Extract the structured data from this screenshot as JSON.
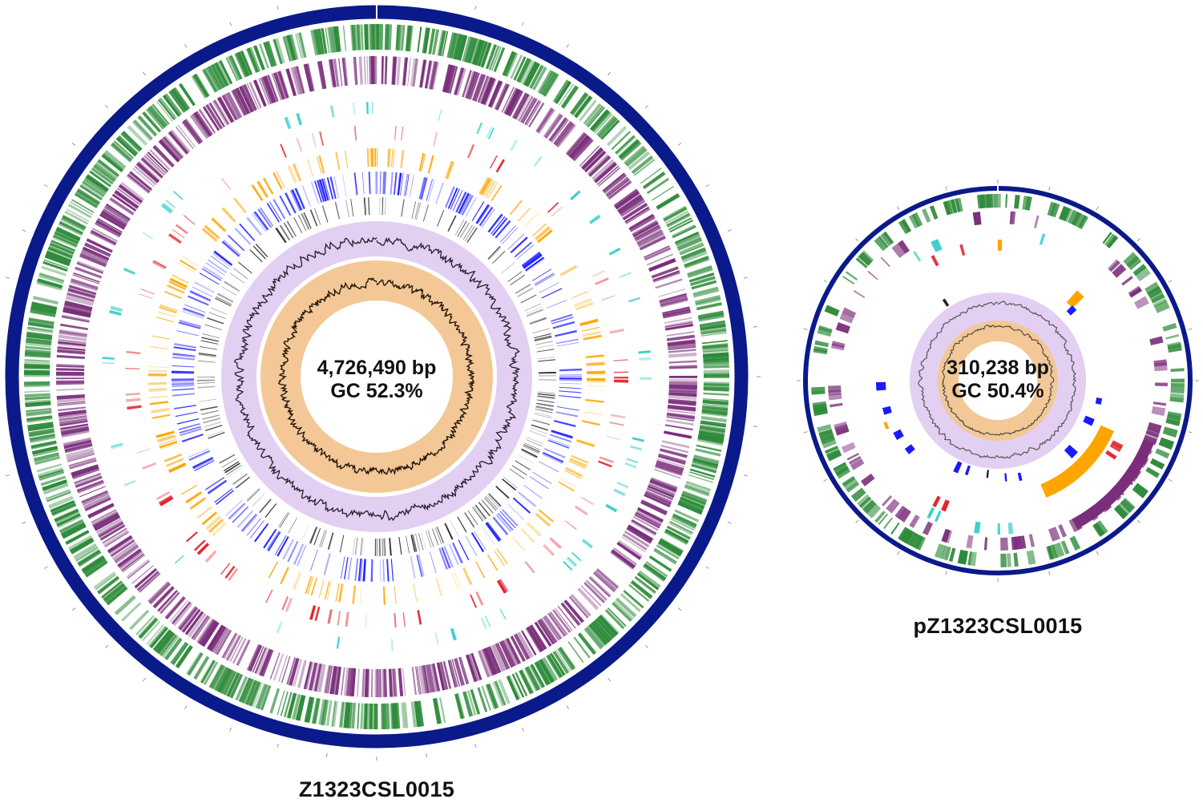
{
  "chromosome": {
    "name": "Z1323CSL0015",
    "length_label": "4,726,490 bp",
    "gc_label": "GC 52.3%",
    "length_bp": 4726490,
    "gc_percent": 52.3
  },
  "plasmid": {
    "name": "pZ1323CSL0015",
    "length_label": "310,238 bp",
    "gc_label": "GC 50.4%",
    "length_bp": 310238,
    "gc_percent": 50.4
  },
  "tracks": [
    {
      "name": "backbone",
      "color": "#0a1a8a"
    },
    {
      "name": "cds-forward",
      "color": "#2e8b3a"
    },
    {
      "name": "cds-reverse",
      "color": "#7a2e7a"
    },
    {
      "name": "track-cyan",
      "color": "#33cccc"
    },
    {
      "name": "track-red",
      "color": "#e0202a"
    },
    {
      "name": "track-orange",
      "color": "#ffa500"
    },
    {
      "name": "track-blue",
      "color": "#1a1aff"
    },
    {
      "name": "track-black",
      "color": "#222222"
    },
    {
      "name": "gc-content",
      "color": "#e3cff2"
    },
    {
      "name": "gc-skew",
      "color": "#f3c896"
    }
  ]
}
